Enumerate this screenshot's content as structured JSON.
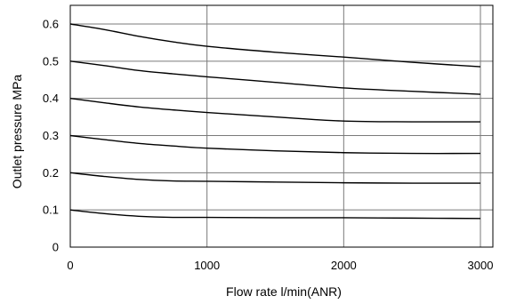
{
  "chart_data": {
    "type": "line",
    "title": "",
    "xlabel": "Flow rate l/min(ANR)",
    "ylabel": "Outlet pressure MPa",
    "xlim": [
      0,
      3000
    ],
    "ylim": [
      0,
      0.6
    ],
    "x_ticks": [
      "0",
      "1000",
      "2000",
      "3000"
    ],
    "y_ticks": [
      "0",
      "0.1",
      "0.2",
      "0.3",
      "0.4",
      "0.5",
      "0.6"
    ],
    "grid": true,
    "series": [
      {
        "x": [
          0,
          250,
          500,
          750,
          1000,
          1500,
          2000,
          2500,
          3000
        ],
        "y": [
          0.6,
          0.585,
          0.567,
          0.552,
          0.54,
          0.524,
          0.511,
          0.497,
          0.485
        ]
      },
      {
        "x": [
          0,
          250,
          500,
          750,
          1000,
          1500,
          2000,
          2500,
          3000
        ],
        "y": [
          0.5,
          0.488,
          0.475,
          0.466,
          0.458,
          0.443,
          0.428,
          0.419,
          0.411
        ]
      },
      {
        "x": [
          0,
          250,
          500,
          750,
          1000,
          1500,
          2000,
          2500,
          3000
        ],
        "y": [
          0.4,
          0.388,
          0.377,
          0.369,
          0.362,
          0.35,
          0.339,
          0.337,
          0.337
        ]
      },
      {
        "x": [
          0,
          250,
          500,
          750,
          1000,
          1500,
          2000,
          2500,
          3000
        ],
        "y": [
          0.3,
          0.289,
          0.279,
          0.272,
          0.266,
          0.259,
          0.254,
          0.252,
          0.252
        ]
      },
      {
        "x": [
          0,
          250,
          500,
          750,
          1000,
          1500,
          2000,
          2500,
          3000
        ],
        "y": [
          0.2,
          0.19,
          0.182,
          0.178,
          0.177,
          0.175,
          0.173,
          0.172,
          0.172
        ]
      },
      {
        "x": [
          0,
          250,
          500,
          750,
          1000,
          1500,
          2000,
          2500,
          3000
        ],
        "y": [
          0.1,
          0.09,
          0.083,
          0.08,
          0.08,
          0.079,
          0.079,
          0.078,
          0.077
        ]
      }
    ]
  }
}
